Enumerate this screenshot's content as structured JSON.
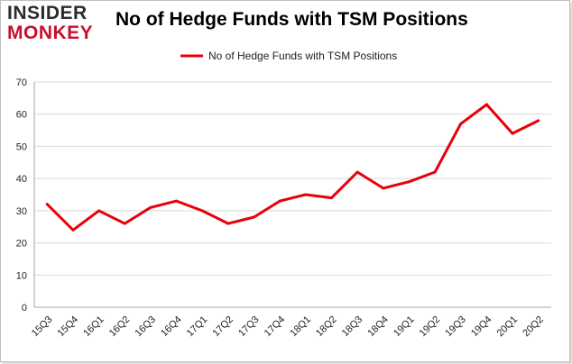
{
  "logo": {
    "line1": "INSIDER",
    "line2": "MONKEY"
  },
  "chart_data": {
    "type": "line",
    "title": "No of Hedge Funds with TSM Positions",
    "xlabel": "",
    "ylabel": "",
    "categories": [
      "15Q3",
      "15Q4",
      "16Q1",
      "16Q2",
      "16Q3",
      "16Q4",
      "17Q1",
      "17Q2",
      "17Q3",
      "17Q4",
      "18Q1",
      "18Q2",
      "18Q3",
      "18Q4",
      "19Q1",
      "19Q2",
      "19Q3",
      "19Q4",
      "20Q1",
      "20Q2"
    ],
    "series": [
      {
        "name": "No of Hedge Funds with TSM Positions",
        "color": "#e8000b",
        "values": [
          32,
          24,
          30,
          26,
          31,
          33,
          30,
          26,
          28,
          33,
          35,
          34,
          42,
          37,
          39,
          42,
          57,
          63,
          54,
          58
        ]
      }
    ],
    "ylim": [
      0,
      70
    ],
    "yticks": [
      0,
      10,
      20,
      30,
      40,
      50,
      60,
      70
    ],
    "grid": true,
    "legend": "top-center"
  }
}
